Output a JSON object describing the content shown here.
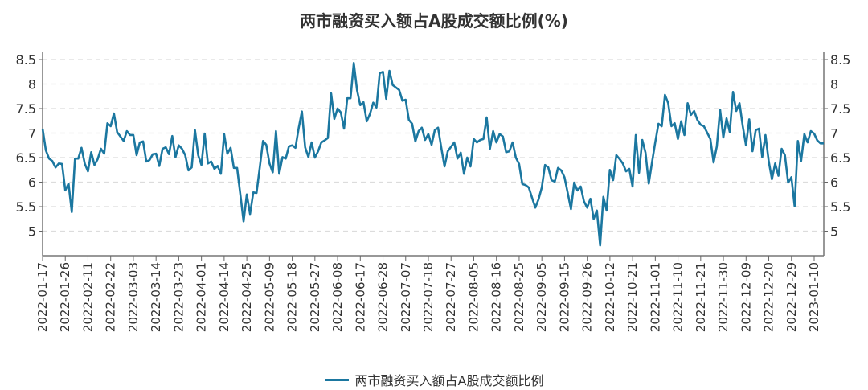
{
  "chart_data": {
    "type": "line",
    "title": "两市融资买入额占A股成交额比例(%)",
    "ylim": [
      4.5,
      8.65
    ],
    "yticks": [
      5,
      5.5,
      6,
      6.5,
      7,
      7.5,
      8,
      8.5
    ],
    "ytick_labels": [
      "5",
      "5.5",
      "6",
      "6.5",
      "7",
      "7.5",
      "8",
      "8.5"
    ],
    "grid": true,
    "legend_position": "bottom",
    "color": "#1b77a0",
    "x_tick_labels": [
      "2022-01-17",
      "2022-01-26",
      "2022-02-11",
      "2022-02-22",
      "2022-03-03",
      "2022-03-14",
      "2022-03-23",
      "2022-04-01",
      "2022-04-14",
      "2022-04-25",
      "2022-05-09",
      "2022-05-18",
      "2022-05-27",
      "2022-06-08",
      "2022-06-17",
      "2022-06-28",
      "2022-07-07",
      "2022-07-18",
      "2022-07-27",
      "2022-08-05",
      "2022-08-16",
      "2022-08-25",
      "2022-09-05",
      "2022-09-15",
      "2022-09-26",
      "2022-10-12",
      "2022-10-21",
      "2022-11-01",
      "2022-11-10",
      "2022-11-21",
      "2022-11-30",
      "2022-12-09",
      "2022-12-20",
      "2022-12-29",
      "2023-01-10"
    ],
    "series": [
      {
        "name": "两市融资买入额占A股成交额比例",
        "values": [
          7.09,
          6.65,
          6.48,
          6.43,
          6.3,
          6.38,
          6.37,
          5.83,
          5.97,
          5.39,
          6.48,
          6.48,
          6.7,
          6.38,
          6.22,
          6.61,
          6.35,
          6.47,
          6.68,
          6.58,
          7.2,
          7.14,
          7.4,
          7.02,
          6.93,
          6.84,
          7.04,
          6.96,
          6.96,
          6.55,
          6.81,
          6.83,
          6.42,
          6.45,
          6.57,
          6.58,
          6.33,
          6.68,
          6.71,
          6.57,
          6.94,
          6.51,
          6.75,
          6.68,
          6.55,
          6.24,
          6.3,
          7.06,
          6.55,
          6.35,
          6.99,
          6.38,
          6.42,
          6.27,
          6.33,
          6.17,
          6.98,
          6.58,
          6.7,
          6.29,
          6.29,
          5.75,
          5.2,
          5.75,
          5.35,
          5.79,
          5.78,
          6.3,
          6.84,
          6.76,
          6.38,
          6.2,
          7.04,
          6.17,
          6.51,
          6.48,
          6.73,
          6.75,
          6.7,
          7.1,
          7.44,
          6.71,
          6.51,
          6.81,
          6.5,
          6.63,
          6.81,
          6.85,
          6.9,
          7.81,
          7.29,
          7.5,
          7.42,
          7.09,
          7.71,
          7.71,
          8.43,
          7.88,
          7.57,
          7.63,
          7.24,
          7.39,
          7.62,
          7.52,
          8.22,
          8.25,
          7.7,
          8.27,
          7.98,
          7.93,
          7.88,
          7.66,
          7.68,
          7.27,
          7.19,
          6.83,
          7.04,
          7.11,
          6.86,
          6.98,
          6.76,
          7.06,
          7.11,
          6.7,
          6.32,
          6.63,
          6.72,
          6.81,
          6.48,
          6.6,
          6.17,
          6.5,
          6.32,
          6.88,
          6.81,
          6.86,
          6.88,
          7.32,
          6.68,
          7.04,
          6.81,
          6.98,
          6.93,
          6.61,
          6.63,
          6.81,
          6.5,
          6.37,
          5.96,
          5.94,
          5.89,
          5.68,
          5.48,
          5.65,
          5.89,
          6.35,
          6.3,
          6.04,
          6.01,
          6.29,
          6.24,
          6.1,
          5.78,
          5.45,
          5.99,
          5.83,
          5.91,
          5.61,
          5.48,
          5.66,
          5.25,
          5.42,
          4.71,
          5.7,
          5.42,
          6.25,
          6.04,
          6.55,
          6.47,
          6.38,
          6.22,
          6.27,
          5.91,
          6.96,
          6.19,
          6.86,
          6.6,
          5.97,
          6.4,
          6.81,
          7.19,
          7.14,
          7.78,
          7.61,
          7.14,
          7.2,
          6.88,
          7.24,
          6.96,
          7.61,
          7.37,
          7.45,
          7.27,
          7.17,
          7.14,
          7.01,
          6.88,
          6.4,
          6.73,
          7.48,
          6.91,
          7.3,
          7.02,
          7.84,
          7.45,
          7.61,
          7.14,
          6.75,
          7.28,
          6.63,
          7.06,
          7.09,
          6.51,
          6.96,
          6.43,
          6.06,
          6.38,
          6.13,
          6.68,
          6.55,
          5.99,
          6.1,
          5.51,
          6.84,
          6.43,
          6.98,
          6.81,
          7.04,
          6.99,
          6.85,
          6.79,
          6.79
        ]
      }
    ]
  }
}
